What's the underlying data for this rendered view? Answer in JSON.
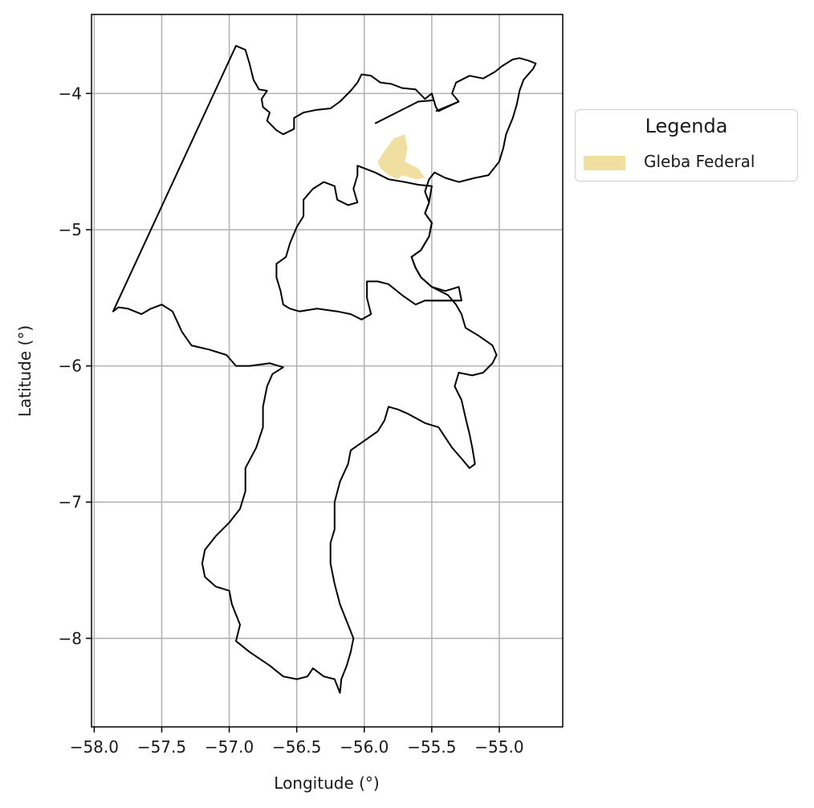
{
  "chart_data": {
    "type": "map",
    "xlabel": "Longitude (°)",
    "ylabel": "Latitude (°)",
    "xlim": [
      -58.02,
      -54.53
    ],
    "ylim": [
      -8.65,
      -3.42
    ],
    "xticks": [
      -58.0,
      -57.5,
      -57.0,
      -56.5,
      -56.0,
      -55.5,
      -55.0
    ],
    "xtick_labels": [
      "−58.0",
      "−57.5",
      "−57.0",
      "−56.5",
      "−56.0",
      "−55.5",
      "−55.0"
    ],
    "yticks": [
      -4,
      -5,
      -6,
      -7,
      -8
    ],
    "ytick_labels": [
      "−4",
      "−5",
      "−6",
      "−7",
      "−8"
    ],
    "grid": true,
    "legend": {
      "title": "Legenda",
      "placement": "outside-right-top",
      "entries": [
        {
          "label": "Gleba Federal",
          "color": "#f0dfa0"
        }
      ]
    },
    "outline_color": "#000000",
    "boundary": [
      [
        -56.95,
        -3.65
      ],
      [
        -56.88,
        -3.68
      ],
      [
        -56.85,
        -3.78
      ],
      [
        -56.82,
        -3.9
      ],
      [
        -56.78,
        -3.97
      ],
      [
        -56.72,
        -3.98
      ],
      [
        -56.76,
        -4.04
      ],
      [
        -56.75,
        -4.1
      ],
      [
        -56.7,
        -4.14
      ],
      [
        -56.72,
        -4.2
      ],
      [
        -56.65,
        -4.27
      ],
      [
        -56.6,
        -4.3
      ],
      [
        -56.52,
        -4.26
      ],
      [
        -56.52,
        -4.18
      ],
      [
        -56.45,
        -4.14
      ],
      [
        -56.35,
        -4.12
      ],
      [
        -56.25,
        -4.11
      ],
      [
        -56.18,
        -4.06
      ],
      [
        -56.1,
        -3.98
      ],
      [
        -56.05,
        -3.92
      ],
      [
        -56.02,
        -3.86
      ],
      [
        -55.95,
        -3.87
      ],
      [
        -55.88,
        -3.92
      ],
      [
        -55.8,
        -3.93
      ],
      [
        -55.72,
        -3.96
      ],
      [
        -55.62,
        -3.97
      ],
      [
        -55.55,
        -4.04
      ],
      [
        -55.5,
        -4.0
      ],
      [
        -55.47,
        -4.1
      ],
      [
        -55.45,
        -4.13
      ],
      [
        -55.3,
        -4.06
      ],
      [
        -55.35,
        -4.0
      ],
      [
        -55.32,
        -3.92
      ],
      [
        -55.22,
        -3.87
      ],
      [
        -55.12,
        -3.89
      ],
      [
        -55.03,
        -3.84
      ],
      [
        -54.98,
        -3.8
      ],
      [
        -54.9,
        -3.75
      ],
      [
        -54.85,
        -3.74
      ],
      [
        -54.78,
        -3.76
      ],
      [
        -54.73,
        -3.78
      ],
      [
        -54.75,
        -3.82
      ],
      [
        -54.82,
        -3.9
      ],
      [
        -54.85,
        -3.98
      ],
      [
        -54.87,
        -4.08
      ],
      [
        -54.9,
        -4.18
      ],
      [
        -54.95,
        -4.3
      ],
      [
        -54.97,
        -4.4
      ],
      [
        -55.0,
        -4.5
      ],
      [
        -55.08,
        -4.6
      ],
      [
        -55.18,
        -4.62
      ],
      [
        -55.3,
        -4.65
      ],
      [
        -55.4,
        -4.62
      ],
      [
        -55.48,
        -4.58
      ],
      [
        -55.52,
        -4.63
      ],
      [
        -55.55,
        -4.72
      ],
      [
        -55.52,
        -4.8
      ],
      [
        -55.55,
        -4.88
      ],
      [
        -55.5,
        -4.95
      ],
      [
        -55.52,
        -5.05
      ],
      [
        -55.58,
        -5.15
      ],
      [
        -55.65,
        -5.2
      ],
      [
        -55.62,
        -5.28
      ],
      [
        -55.58,
        -5.35
      ],
      [
        -55.5,
        -5.42
      ],
      [
        -55.38,
        -5.48
      ],
      [
        -55.32,
        -5.55
      ],
      [
        -55.28,
        -5.62
      ],
      [
        -55.25,
        -5.72
      ],
      [
        -55.15,
        -5.78
      ],
      [
        -55.05,
        -5.85
      ],
      [
        -55.02,
        -5.92
      ],
      [
        -55.05,
        -5.98
      ],
      [
        -55.12,
        -6.05
      ],
      [
        -55.2,
        -6.07
      ],
      [
        -55.3,
        -6.05
      ],
      [
        -55.33,
        -6.15
      ],
      [
        -55.28,
        -6.25
      ],
      [
        -55.25,
        -6.38
      ],
      [
        -55.22,
        -6.5
      ],
      [
        -55.2,
        -6.6
      ],
      [
        -55.18,
        -6.72
      ],
      [
        -55.22,
        -6.75
      ],
      [
        -55.28,
        -6.68
      ],
      [
        -55.35,
        -6.6
      ],
      [
        -55.45,
        -6.45
      ],
      [
        -55.55,
        -6.42
      ],
      [
        -55.68,
        -6.35
      ],
      [
        -55.75,
        -6.32
      ],
      [
        -55.82,
        -6.3
      ],
      [
        -55.85,
        -6.4
      ],
      [
        -55.9,
        -6.48
      ],
      [
        -56.0,
        -6.55
      ],
      [
        -56.1,
        -6.62
      ],
      [
        -56.12,
        -6.72
      ],
      [
        -56.18,
        -6.85
      ],
      [
        -56.22,
        -7.0
      ],
      [
        -56.22,
        -7.2
      ],
      [
        -56.25,
        -7.3
      ],
      [
        -56.25,
        -7.45
      ],
      [
        -56.22,
        -7.6
      ],
      [
        -56.18,
        -7.75
      ],
      [
        -56.12,
        -7.9
      ],
      [
        -56.08,
        -8.0
      ],
      [
        -56.1,
        -8.1
      ],
      [
        -56.13,
        -8.2
      ],
      [
        -56.17,
        -8.3
      ],
      [
        -56.18,
        -8.4
      ],
      [
        -56.22,
        -8.3
      ],
      [
        -56.3,
        -8.28
      ],
      [
        -56.38,
        -8.22
      ],
      [
        -56.42,
        -8.28
      ],
      [
        -56.5,
        -8.3
      ],
      [
        -56.6,
        -8.28
      ],
      [
        -56.7,
        -8.2
      ],
      [
        -56.85,
        -8.1
      ],
      [
        -56.95,
        -8.02
      ],
      [
        -56.92,
        -7.9
      ],
      [
        -56.98,
        -7.75
      ],
      [
        -57.0,
        -7.65
      ],
      [
        -57.1,
        -7.62
      ],
      [
        -57.18,
        -7.55
      ],
      [
        -57.2,
        -7.45
      ],
      [
        -57.18,
        -7.35
      ],
      [
        -57.1,
        -7.25
      ],
      [
        -57.0,
        -7.15
      ],
      [
        -56.92,
        -7.05
      ],
      [
        -56.88,
        -6.92
      ],
      [
        -56.88,
        -6.75
      ],
      [
        -56.8,
        -6.6
      ],
      [
        -56.75,
        -6.45
      ],
      [
        -56.75,
        -6.3
      ],
      [
        -56.72,
        -6.15
      ],
      [
        -56.68,
        -6.06
      ],
      [
        -56.6,
        -6.01
      ],
      [
        -56.7,
        -5.98
      ],
      [
        -56.85,
        -6.0
      ],
      [
        -56.95,
        -6.0
      ],
      [
        -57.02,
        -5.92
      ],
      [
        -57.15,
        -5.88
      ],
      [
        -57.28,
        -5.85
      ],
      [
        -57.35,
        -5.75
      ],
      [
        -57.42,
        -5.6
      ],
      [
        -57.5,
        -5.55
      ],
      [
        -57.58,
        -5.58
      ],
      [
        -57.65,
        -5.62
      ],
      [
        -57.75,
        -5.58
      ],
      [
        -57.82,
        -5.57
      ],
      [
        -57.86,
        -5.6
      ],
      [
        -56.95,
        -3.65
      ]
    ],
    "inner_polygon": [
      [
        -56.05,
        -4.53
      ],
      [
        -55.92,
        -4.58
      ],
      [
        -55.82,
        -4.63
      ],
      [
        -55.7,
        -4.65
      ],
      [
        -55.6,
        -4.67
      ],
      [
        -55.5,
        -4.68
      ],
      [
        -55.52,
        -4.8
      ],
      [
        -55.55,
        -4.88
      ],
      [
        -55.5,
        -4.95
      ],
      [
        -55.52,
        -5.05
      ],
      [
        -55.58,
        -5.15
      ],
      [
        -55.65,
        -5.2
      ],
      [
        -55.62,
        -5.28
      ],
      [
        -55.58,
        -5.35
      ],
      [
        -55.5,
        -5.42
      ],
      [
        -55.4,
        -5.45
      ],
      [
        -55.3,
        -5.42
      ],
      [
        -55.28,
        -5.52
      ],
      [
        -55.55,
        -5.52
      ],
      [
        -55.62,
        -5.55
      ],
      [
        -55.72,
        -5.48
      ],
      [
        -55.82,
        -5.4
      ],
      [
        -55.9,
        -5.38
      ],
      [
        -55.98,
        -5.38
      ],
      [
        -55.98,
        -5.5
      ],
      [
        -55.95,
        -5.62
      ],
      [
        -56.02,
        -5.66
      ],
      [
        -56.1,
        -5.62
      ],
      [
        -56.2,
        -5.6
      ],
      [
        -56.35,
        -5.58
      ],
      [
        -56.48,
        -5.6
      ],
      [
        -56.55,
        -5.58
      ],
      [
        -56.6,
        -5.55
      ],
      [
        -56.62,
        -5.45
      ],
      [
        -56.65,
        -5.35
      ],
      [
        -56.65,
        -5.25
      ],
      [
        -56.58,
        -5.2
      ],
      [
        -56.55,
        -5.1
      ],
      [
        -56.5,
        -4.98
      ],
      [
        -56.45,
        -4.9
      ],
      [
        -56.45,
        -4.78
      ],
      [
        -56.38,
        -4.7
      ],
      [
        -56.3,
        -4.65
      ],
      [
        -56.22,
        -4.68
      ],
      [
        -56.2,
        -4.78
      ],
      [
        -56.12,
        -4.82
      ],
      [
        -56.05,
        -4.8
      ],
      [
        -56.08,
        -4.7
      ],
      [
        -56.05,
        -4.6
      ],
      [
        -56.05,
        -4.53
      ]
    ],
    "spur_lines": [
      [
        [
          -55.3,
          -5.52
        ],
        [
          -55.55,
          -5.52
        ]
      ],
      [
        [
          -55.92,
          -4.22
        ],
        [
          -55.6,
          -4.06
        ],
        [
          -55.48,
          -4.05
        ]
      ],
      [
        [
          -55.47,
          -4.13
        ],
        [
          -55.3,
          -4.06
        ]
      ]
    ],
    "gleba_federal": [
      [
        -55.85,
        -4.42
      ],
      [
        -55.78,
        -4.33
      ],
      [
        -55.7,
        -4.3
      ],
      [
        -55.68,
        -4.4
      ],
      [
        -55.7,
        -4.5
      ],
      [
        -55.6,
        -4.55
      ],
      [
        -55.55,
        -4.62
      ],
      [
        -55.62,
        -4.63
      ],
      [
        -55.72,
        -4.6
      ],
      [
        -55.75,
        -4.63
      ],
      [
        -55.82,
        -4.6
      ],
      [
        -55.88,
        -4.55
      ],
      [
        -55.9,
        -4.5
      ]
    ]
  }
}
